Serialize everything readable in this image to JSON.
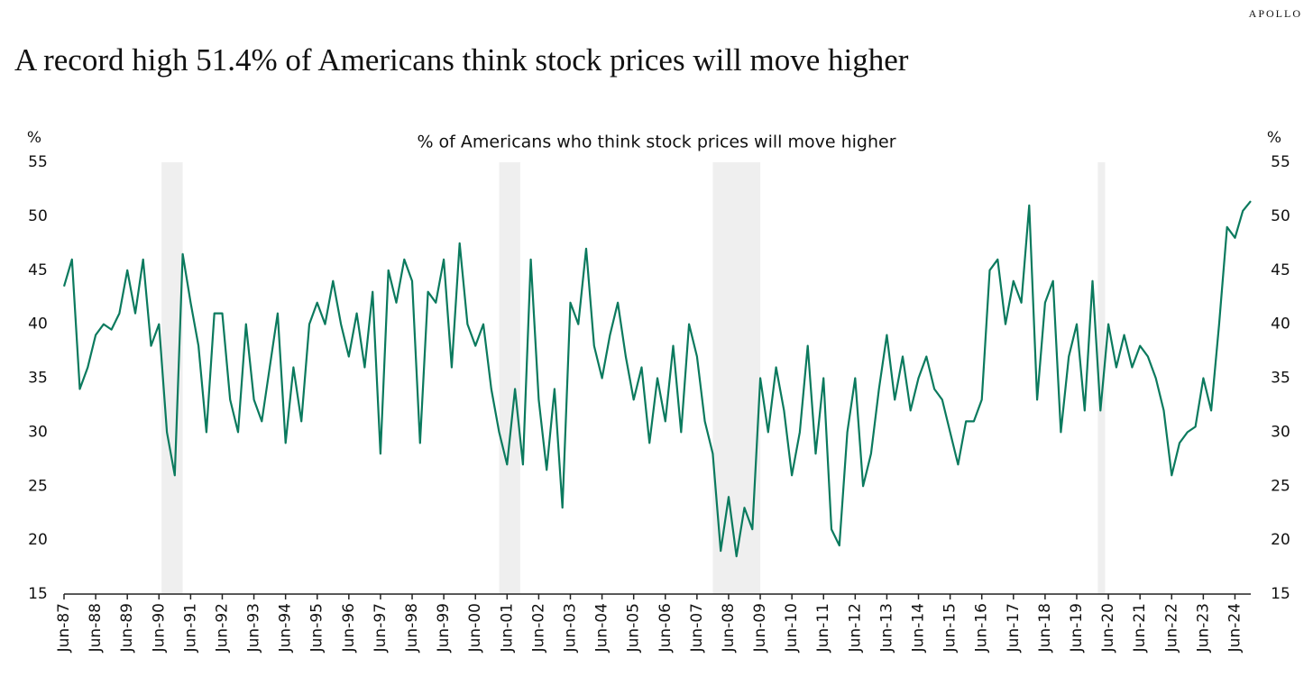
{
  "brand": "APOLLO",
  "chart_data": {
    "type": "line",
    "title": "A record high 51.4% of Americans think stock prices will move higher",
    "subtitle": "% of Americans who think stock prices will move higher",
    "y_label": "%",
    "y2_label": "%",
    "color": "#0b7a5e",
    "shade_color": "#efefef",
    "shaded_periods": [
      [
        "1990-07",
        "1991-03"
      ],
      [
        "2001-03",
        "2001-11"
      ],
      [
        "2007-12",
        "2009-06"
      ],
      [
        "2020-02",
        "2020-04"
      ]
    ],
    "x": [
      "1987-06",
      "1987-09",
      "1987-12",
      "1988-03",
      "1988-06",
      "1988-09",
      "1988-12",
      "1989-03",
      "1989-06",
      "1989-09",
      "1989-12",
      "1990-03",
      "1990-06",
      "1990-09",
      "1990-12",
      "1991-03",
      "1991-06",
      "1991-09",
      "1991-12",
      "1992-03",
      "1992-06",
      "1992-09",
      "1992-12",
      "1993-03",
      "1993-06",
      "1993-09",
      "1993-12",
      "1994-03",
      "1994-06",
      "1994-09",
      "1994-12",
      "1995-03",
      "1995-06",
      "1995-09",
      "1995-12",
      "1996-03",
      "1996-06",
      "1996-09",
      "1996-12",
      "1997-03",
      "1997-06",
      "1997-09",
      "1997-12",
      "1998-03",
      "1998-06",
      "1998-09",
      "1998-12",
      "1999-03",
      "1999-06",
      "1999-09",
      "1999-12",
      "2000-03",
      "2000-06",
      "2000-09",
      "2000-12",
      "2001-03",
      "2001-06",
      "2001-09",
      "2001-12",
      "2002-03",
      "2002-06",
      "2002-09",
      "2002-12",
      "2003-03",
      "2003-06",
      "2003-09",
      "2003-12",
      "2004-03",
      "2004-06",
      "2004-09",
      "2004-12",
      "2005-03",
      "2005-06",
      "2005-09",
      "2005-12",
      "2006-03",
      "2006-06",
      "2006-09",
      "2006-12",
      "2007-03",
      "2007-06",
      "2007-09",
      "2007-12",
      "2008-03",
      "2008-06",
      "2008-09",
      "2008-12",
      "2009-03",
      "2009-06",
      "2009-09",
      "2009-12",
      "2010-03",
      "2010-06",
      "2010-09",
      "2010-12",
      "2011-03",
      "2011-06",
      "2011-09",
      "2011-12",
      "2012-03",
      "2012-06",
      "2012-09",
      "2012-12",
      "2013-03",
      "2013-06",
      "2013-09",
      "2013-12",
      "2014-03",
      "2014-06",
      "2014-09",
      "2014-12",
      "2015-03",
      "2015-06",
      "2015-09",
      "2015-12",
      "2016-03",
      "2016-06",
      "2016-09",
      "2016-12",
      "2017-03",
      "2017-06",
      "2017-09",
      "2017-12",
      "2018-03",
      "2018-06",
      "2018-09",
      "2018-12",
      "2019-03",
      "2019-06",
      "2019-09",
      "2019-12",
      "2020-03",
      "2020-06",
      "2020-09",
      "2020-12",
      "2021-03",
      "2021-06",
      "2021-09",
      "2021-12",
      "2022-03",
      "2022-06",
      "2022-09",
      "2022-12",
      "2023-03",
      "2023-06",
      "2023-09",
      "2023-12",
      "2024-03",
      "2024-06",
      "2024-09",
      "2024-12"
    ],
    "values": [
      43.5,
      46,
      34,
      36,
      39,
      40,
      39.5,
      41,
      45,
      41,
      46,
      38,
      40,
      30,
      26,
      46.5,
      42,
      38,
      30,
      41,
      41,
      33,
      30,
      40,
      33,
      31,
      36,
      41,
      29,
      36,
      31,
      40,
      42,
      40,
      44,
      40,
      37,
      41,
      36,
      43,
      28,
      45,
      42,
      46,
      44,
      29,
      43,
      42,
      46,
      36,
      47.5,
      40,
      38,
      40,
      34,
      30,
      27,
      34,
      27,
      46,
      33,
      26.5,
      34,
      23,
      42,
      40,
      47,
      38,
      35,
      39,
      42,
      37,
      33,
      36,
      29,
      35,
      31,
      38,
      30,
      40,
      37,
      31,
      28,
      19,
      24,
      18.5,
      23,
      21,
      35,
      30,
      36,
      32,
      26,
      30,
      38,
      28,
      35,
      21,
      19.5,
      30,
      35,
      25,
      28,
      34,
      39,
      33,
      37,
      32,
      35,
      37,
      34,
      33,
      30,
      27,
      31,
      31,
      33,
      45,
      46,
      40,
      44,
      42,
      51,
      33,
      42,
      44,
      30,
      37,
      40,
      32,
      44,
      32,
      40,
      36,
      39,
      36,
      38,
      37,
      35,
      32,
      26,
      29,
      30,
      30.5,
      35,
      32,
      40,
      49,
      48,
      50.5,
      51.4
    ],
    "xlim": [
      "1987-06",
      "2024-12"
    ],
    "xticks": [
      {
        "value": "1987-06",
        "label": "Jun-87"
      },
      {
        "value": "1988-06",
        "label": "Jun-88"
      },
      {
        "value": "1989-06",
        "label": "Jun-89"
      },
      {
        "value": "1990-06",
        "label": "Jun-90"
      },
      {
        "value": "1991-06",
        "label": "Jun-91"
      },
      {
        "value": "1992-06",
        "label": "Jun-92"
      },
      {
        "value": "1993-06",
        "label": "Jun-93"
      },
      {
        "value": "1994-06",
        "label": "Jun-94"
      },
      {
        "value": "1995-06",
        "label": "Jun-95"
      },
      {
        "value": "1996-06",
        "label": "Jun-96"
      },
      {
        "value": "1997-06",
        "label": "Jun-97"
      },
      {
        "value": "1998-06",
        "label": "Jun-98"
      },
      {
        "value": "1999-06",
        "label": "Jun-99"
      },
      {
        "value": "2000-06",
        "label": "Jun-00"
      },
      {
        "value": "2001-06",
        "label": "Jun-01"
      },
      {
        "value": "2002-06",
        "label": "Jun-02"
      },
      {
        "value": "2003-06",
        "label": "Jun-03"
      },
      {
        "value": "2004-06",
        "label": "Jun-04"
      },
      {
        "value": "2005-06",
        "label": "Jun-05"
      },
      {
        "value": "2006-06",
        "label": "Jun-06"
      },
      {
        "value": "2007-06",
        "label": "Jun-07"
      },
      {
        "value": "2008-06",
        "label": "Jun-08"
      },
      {
        "value": "2009-06",
        "label": "Jun-09"
      },
      {
        "value": "2010-06",
        "label": "Jun-10"
      },
      {
        "value": "2011-06",
        "label": "Jun-11"
      },
      {
        "value": "2012-06",
        "label": "Jun-12"
      },
      {
        "value": "2013-06",
        "label": "Jun-13"
      },
      {
        "value": "2014-06",
        "label": "Jun-14"
      },
      {
        "value": "2015-06",
        "label": "Jun-15"
      },
      {
        "value": "2016-06",
        "label": "Jun-16"
      },
      {
        "value": "2017-06",
        "label": "Jun-17"
      },
      {
        "value": "2018-06",
        "label": "Jun-18"
      },
      {
        "value": "2019-06",
        "label": "Jun-19"
      },
      {
        "value": "2020-06",
        "label": "Jun-20"
      },
      {
        "value": "2021-06",
        "label": "Jun-21"
      },
      {
        "value": "2022-06",
        "label": "Jun-22"
      },
      {
        "value": "2023-06",
        "label": "Jun-23"
      },
      {
        "value": "2024-06",
        "label": "Jun-24"
      }
    ],
    "ylim": [
      15,
      55
    ],
    "yticks": [
      15,
      20,
      25,
      30,
      35,
      40,
      45,
      50,
      55
    ],
    "y2lim": [
      15,
      55
    ],
    "y2ticks": [
      15,
      20,
      25,
      30,
      35,
      40,
      45,
      50,
      55
    ],
    "grid": false
  }
}
